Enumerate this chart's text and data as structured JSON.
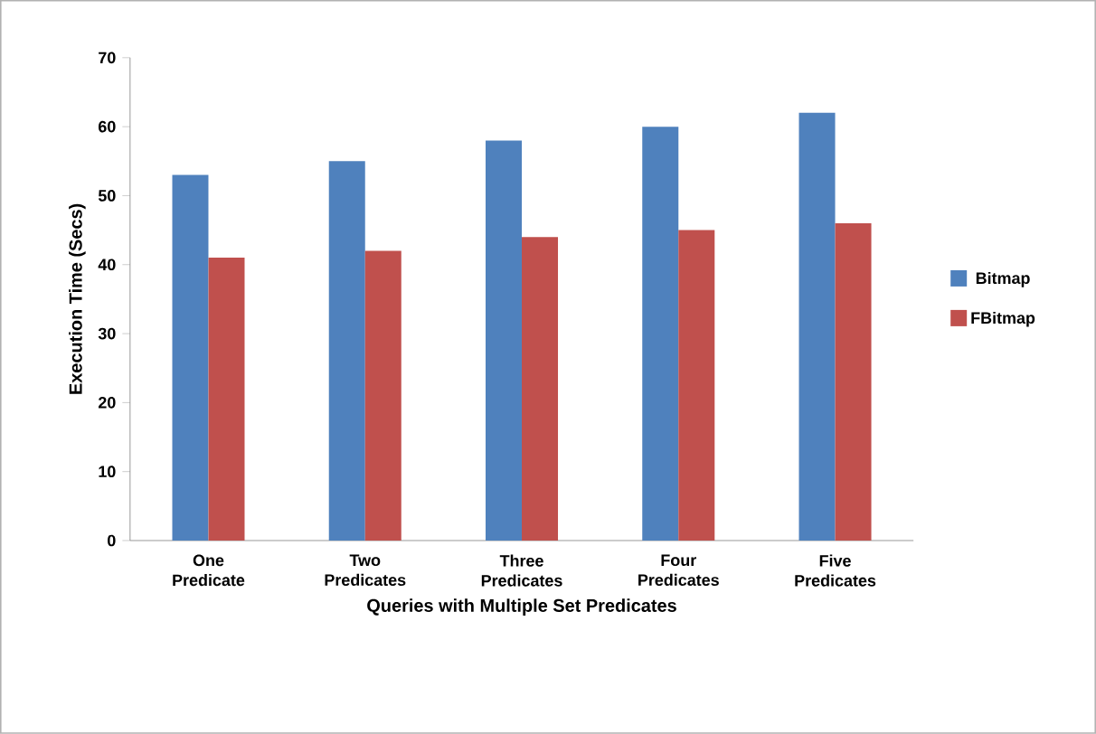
{
  "chart_data": {
    "type": "bar",
    "xlabel": "Queries with Multiple Set Predicates",
    "ylabel": "Execution Time (Secs)",
    "categories": [
      "One Predicate",
      "Two Predicates",
      "Three Predicates",
      "Four Predicates",
      "Five Predicates"
    ],
    "series": [
      {
        "name": "Bitmap",
        "color": "#4f81bd",
        "values": [
          53,
          55,
          58,
          60,
          62
        ]
      },
      {
        "name": "FBitmap",
        "color": "#c0504d",
        "values": [
          41,
          42,
          44,
          45,
          46
        ]
      }
    ],
    "ylim": [
      0,
      70
    ],
    "yticks": [
      0,
      10,
      20,
      30,
      40,
      50,
      60,
      70
    ],
    "legend": "right"
  }
}
